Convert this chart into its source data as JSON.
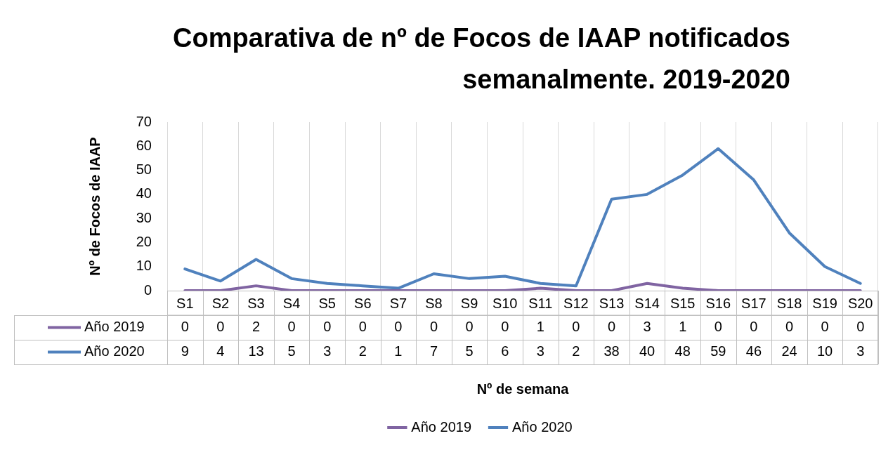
{
  "chart_data": {
    "type": "line",
    "title": "Comparativa de nº de Focos de IAAP notificados semanalmente. 2019-2020",
    "xlabel": "Nº de semana",
    "ylabel": "Nº de Focos de IAAP",
    "categories": [
      "S1",
      "S2",
      "S3",
      "S4",
      "S5",
      "S6",
      "S7",
      "S8",
      "S9",
      "S10",
      "S11",
      "S12",
      "S13",
      "S14",
      "S15",
      "S16",
      "S17",
      "S18",
      "S19",
      "S20"
    ],
    "series": [
      {
        "name": "Año 2019",
        "color": "#8064a2",
        "values": [
          0,
          0,
          2,
          0,
          0,
          0,
          0,
          0,
          0,
          0,
          1,
          0,
          0,
          3,
          1,
          0,
          0,
          0,
          0,
          0
        ]
      },
      {
        "name": "Año 2020",
        "color": "#4f81bd",
        "values": [
          9,
          4,
          13,
          5,
          3,
          2,
          1,
          7,
          5,
          6,
          3,
          2,
          38,
          40,
          48,
          59,
          46,
          24,
          10,
          3
        ]
      }
    ],
    "ylim": [
      0,
      70
    ],
    "yticks": [
      0,
      10,
      20,
      30,
      40,
      50,
      60,
      70
    ],
    "grid": "x",
    "legend": "bottom",
    "marker": "none",
    "line_style": "solid",
    "data_labels": true
  }
}
